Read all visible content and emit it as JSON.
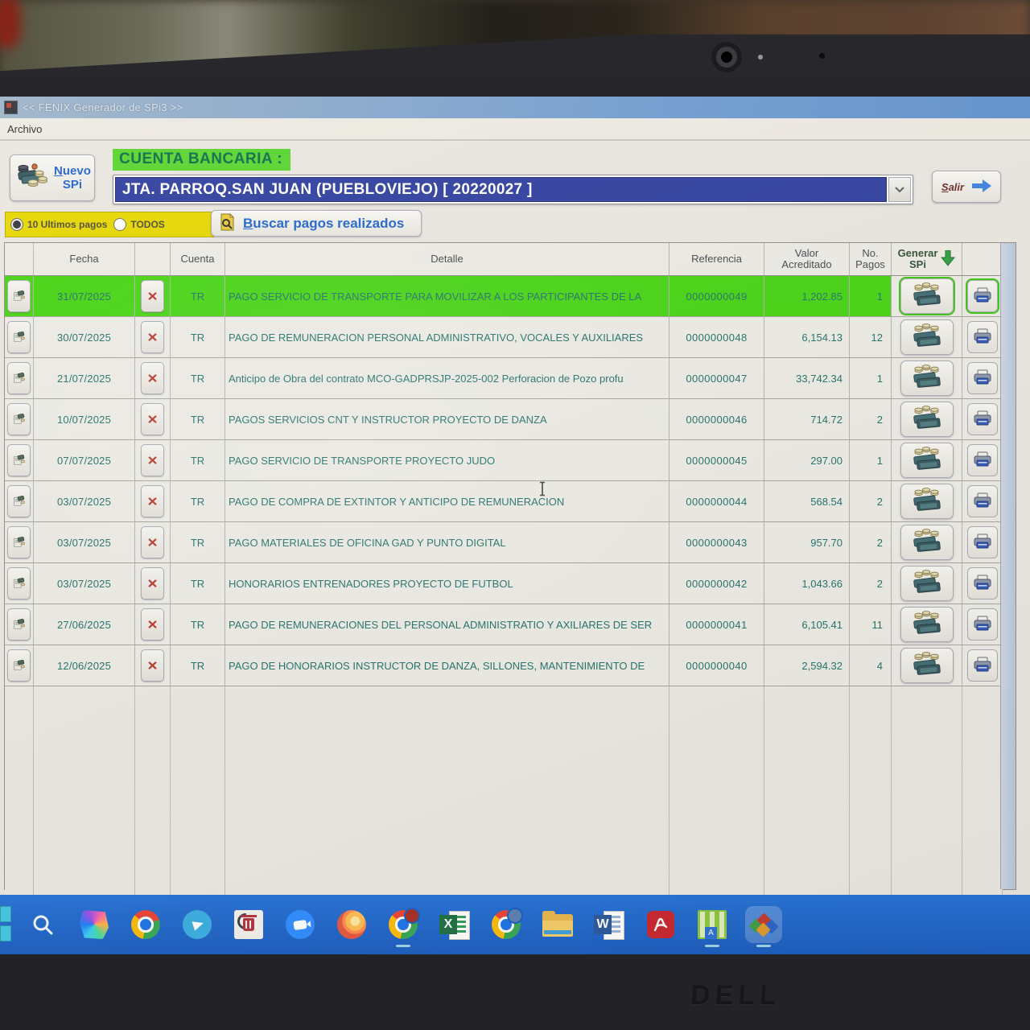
{
  "window": {
    "title": "<< FENIX Generador de SPi3 >>",
    "menu_archivo": "Archivo"
  },
  "toolbar": {
    "nuevo_line1": "Nuevo",
    "nuevo_line2": "SPi",
    "cuenta_label": "CUENTA BANCARIA :",
    "cuenta_value": "JTA. PARROQ.SAN JUAN (PUEBLOVIEJO) [ 20220027 ]",
    "salir_label": "Salir"
  },
  "filters": {
    "recent_label": "10 Ultimos pagos",
    "all_label": "TODOS",
    "selected": "10 Ultimos pagos",
    "search_label": "Buscar pagos realizados"
  },
  "table": {
    "headers": {
      "fecha": "Fecha",
      "cuenta": "Cuenta",
      "detalle": "Detalle",
      "referencia": "Referencia",
      "valor_line1": "Valor",
      "valor_line2": "Acreditado",
      "pagos_line1": "No.",
      "pagos_line2": "Pagos",
      "generar_line1": "Generar",
      "generar_line2": "SPi"
    },
    "rows": [
      {
        "fecha": "31/07/2025",
        "cuenta": "TR",
        "detalle": "PAGO SERVICIO DE TRANSPORTE PARA MOVILIZAR A LOS PARTICIPANTES DE LA",
        "referencia": "0000000049",
        "valor": "1,202.85",
        "pagos": "1",
        "highlighted": true
      },
      {
        "fecha": "30/07/2025",
        "cuenta": "TR",
        "detalle": "PAGO DE REMUNERACION PERSONAL ADMINISTRATIVO, VOCALES Y AUXILIARES",
        "referencia": "0000000048",
        "valor": "6,154.13",
        "pagos": "12",
        "highlighted": false
      },
      {
        "fecha": "21/07/2025",
        "cuenta": "TR",
        "detalle": "Anticipo de Obra del contrato MCO-GADPRSJP-2025-002 Perforacion de Pozo profu",
        "referencia": "0000000047",
        "valor": "33,742.34",
        "pagos": "1",
        "highlighted": false
      },
      {
        "fecha": "10/07/2025",
        "cuenta": "TR",
        "detalle": "PAGOS SERVICIOS CNT Y INSTRUCTOR PROYECTO DE DANZA",
        "referencia": "0000000046",
        "valor": "714.72",
        "pagos": "2",
        "highlighted": false
      },
      {
        "fecha": "07/07/2025",
        "cuenta": "TR",
        "detalle": "PAGO SERVICIO DE TRANSPORTE PROYECTO JUDO",
        "referencia": "0000000045",
        "valor": "297.00",
        "pagos": "1",
        "highlighted": false
      },
      {
        "fecha": "03/07/2025",
        "cuenta": "TR",
        "detalle": "PAGO DE COMPRA DE EXTINTOR Y ANTICIPO DE REMUNERACION",
        "referencia": "0000000044",
        "valor": "568.54",
        "pagos": "2",
        "highlighted": false
      },
      {
        "fecha": "03/07/2025",
        "cuenta": "TR",
        "detalle": "PAGO MATERIALES DE OFICINA GAD Y PUNTO DIGITAL",
        "referencia": "0000000043",
        "valor": "957.70",
        "pagos": "2",
        "highlighted": false
      },
      {
        "fecha": "03/07/2025",
        "cuenta": "TR",
        "detalle": "HONORARIOS ENTRENADORES PROYECTO DE FUTBOL",
        "referencia": "0000000042",
        "valor": "1,043.66",
        "pagos": "2",
        "highlighted": false
      },
      {
        "fecha": "27/06/2025",
        "cuenta": "TR",
        "detalle": "PAGO DE REMUNERACIONES DEL PERSONAL ADMINISTRATIO Y AXILIARES DE SER",
        "referencia": "0000000041",
        "valor": "6,105.41",
        "pagos": "11",
        "highlighted": false
      },
      {
        "fecha": "12/06/2025",
        "cuenta": "TR",
        "detalle": "PAGO DE HONORARIOS INSTRUCTOR DE DANZA, SILLONES, MANTENIMIENTO DE",
        "referencia": "0000000040",
        "valor": "2,594.32",
        "pagos": "4",
        "highlighted": false
      }
    ]
  },
  "taskbar": {
    "icons": [
      "search",
      "copilot",
      "chrome",
      "telegram",
      "recycle-app",
      "blue-circle-app",
      "firefox",
      "chrome-clock-badge",
      "excel",
      "chrome-profile-badge",
      "file-explorer",
      "word",
      "acrobat",
      "green-columns-app",
      "fenix"
    ],
    "open_icons": [
      "chrome-clock-badge",
      "green-columns-app",
      "fenix"
    ],
    "active_icon": "fenix"
  },
  "laptop": {
    "brand": "DELL"
  },
  "colors": {
    "highlight_green": "#44d411",
    "label_green": "#57d42e",
    "dropdown_navy": "#2e3e9e",
    "filter_yellow": "#e7d600",
    "taskbar_blue": "#1e63c8",
    "detail_teal": "#20706a"
  }
}
